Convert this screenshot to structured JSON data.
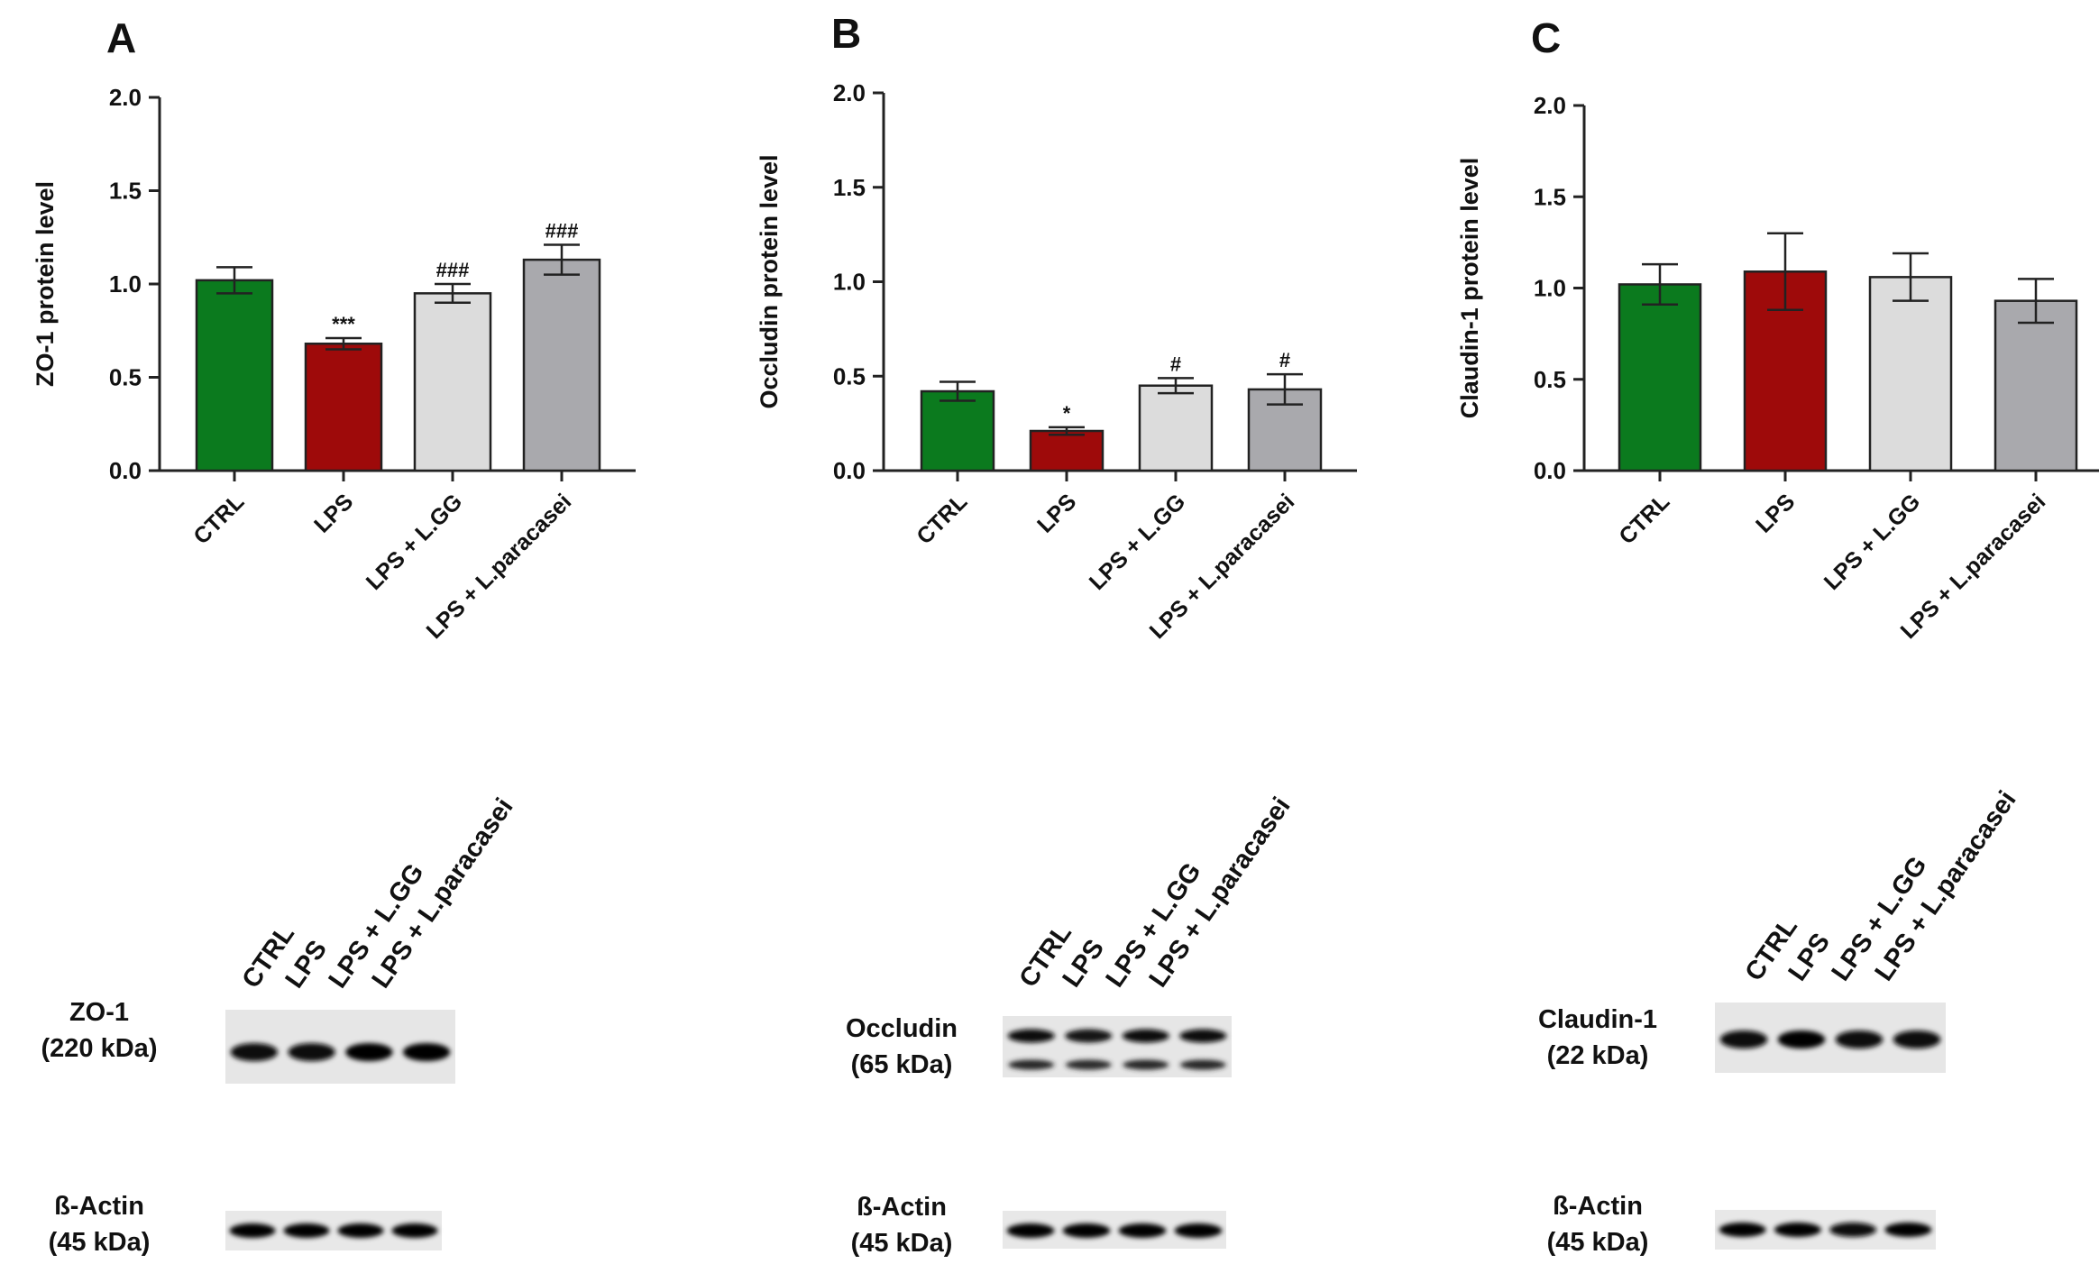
{
  "colors": {
    "ctrl": "#0b7a1e",
    "lps": "#9e0a0a",
    "lgg": "#dcdcdc",
    "paracasei": "#a9a9ad"
  },
  "chart_data": [
    {
      "type": "bar",
      "panel_letter": "A",
      "ylabel": "ZO-1 protein level",
      "ylim": [
        0,
        2
      ],
      "yticks": [
        "0.0",
        "0.5",
        "1.0",
        "1.5",
        "2.0"
      ],
      "categories": [
        "CTRL",
        "LPS",
        "LPS + L.GG",
        "LPS + L.paracasei"
      ],
      "values": [
        1.02,
        0.68,
        0.95,
        1.13
      ],
      "errors": [
        0.07,
        0.03,
        0.05,
        0.08
      ],
      "annotations": [
        "",
        "***",
        "###",
        "###"
      ]
    },
    {
      "type": "bar",
      "panel_letter": "B",
      "ylabel": "Occludin protein level",
      "ylim": [
        0,
        2
      ],
      "yticks": [
        "0.0",
        "0.5",
        "1.0",
        "1.5",
        "2.0"
      ],
      "categories": [
        "CTRL",
        "LPS",
        "LPS + L.GG",
        "LPS + L.paracasei"
      ],
      "values": [
        0.42,
        0.21,
        0.45,
        0.43
      ],
      "errors": [
        0.05,
        0.02,
        0.04,
        0.08
      ],
      "annotations": [
        "",
        "*",
        "#",
        "#"
      ]
    },
    {
      "type": "bar",
      "panel_letter": "C",
      "ylabel": "Claudin-1 protein level",
      "ylim": [
        0,
        2
      ],
      "yticks": [
        "0.0",
        "0.5",
        "1.0",
        "1.5",
        "2.0"
      ],
      "categories": [
        "CTRL",
        "LPS",
        "LPS + L.GG",
        "LPS + L.paracasei"
      ],
      "values": [
        1.02,
        1.09,
        1.06,
        0.93
      ],
      "errors": [
        0.11,
        0.21,
        0.13,
        0.12
      ],
      "annotations": [
        "",
        "",
        "",
        ""
      ]
    }
  ],
  "blots": [
    {
      "lanes": [
        "CTRL",
        "LPS",
        "LPS + L.GG",
        "LPS + L.paracasei"
      ],
      "target": {
        "name": "ZO-1",
        "size": "(220 kDa)",
        "band_strength": [
          0.85,
          0.8,
          0.9,
          0.95
        ],
        "double_band": false
      },
      "actin": {
        "name": "ß-Actin",
        "size": "(45 kDa)",
        "band_strength": [
          0.9,
          0.9,
          0.9,
          0.9
        ]
      }
    },
    {
      "lanes": [
        "CTRL",
        "LPS",
        "LPS + L.GG",
        "LPS + L.paracasei"
      ],
      "target": {
        "name": "Occludin",
        "size": "(65 kDa)",
        "band_strength": [
          0.85,
          0.7,
          0.85,
          0.85
        ],
        "double_band": true
      },
      "actin": {
        "name": "ß-Actin",
        "size": "(45 kDa)",
        "band_strength": [
          0.9,
          0.9,
          0.9,
          0.9
        ]
      }
    },
    {
      "lanes": [
        "CTRL",
        "LPS",
        "LPS + L.GG",
        "LPS + L.paracasei"
      ],
      "target": {
        "name": "Claudin-1",
        "size": "(22 kDa)",
        "band_strength": [
          0.85,
          0.9,
          0.85,
          0.85
        ],
        "double_band": false
      },
      "actin": {
        "name": "ß-Actin",
        "size": "(45 kDa)",
        "band_strength": [
          0.9,
          0.9,
          0.85,
          0.9
        ]
      }
    }
  ]
}
